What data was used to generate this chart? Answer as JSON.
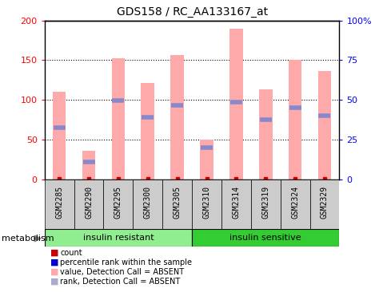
{
  "title": "GDS158 / RC_AA133167_at",
  "samples": [
    "GSM2285",
    "GSM2290",
    "GSM2295",
    "GSM2300",
    "GSM2305",
    "GSM2310",
    "GSM2314",
    "GSM2319",
    "GSM2324",
    "GSM2329"
  ],
  "pink_bars": [
    110,
    36,
    152,
    121,
    157,
    50,
    190,
    113,
    150,
    136
  ],
  "blue_markers": [
    65,
    22,
    99,
    78,
    93,
    40,
    97,
    75,
    90,
    80
  ],
  "ylim_left": [
    0,
    200
  ],
  "ylim_right": [
    0,
    100
  ],
  "yticks_left": [
    0,
    50,
    100,
    150,
    200
  ],
  "yticks_right": [
    0,
    25,
    50,
    75,
    100
  ],
  "ytick_labels_right": [
    "0",
    "25",
    "50",
    "75",
    "100%"
  ],
  "ytick_labels_left": [
    "0",
    "50",
    "100",
    "150",
    "200"
  ],
  "group_resistant_color": "#90ee90",
  "group_sensitive_color": "#33cc33",
  "gray_box_color": "#cccccc",
  "bar_color": "#ffaaaa",
  "blue_marker_color": "#8888cc",
  "red_dot_color": "#cc0000",
  "legend_colors": [
    "#cc0000",
    "#0000cc",
    "#ffaaaa",
    "#aaaacc"
  ],
  "legend_labels": [
    "count",
    "percentile rank within the sample",
    "value, Detection Call = ABSENT",
    "rank, Detection Call = ABSENT"
  ],
  "bar_width": 0.45,
  "grid_dotted_values": [
    50,
    100,
    150
  ]
}
